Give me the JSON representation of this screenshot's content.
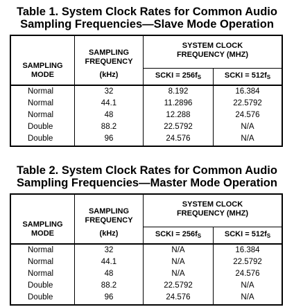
{
  "tables": [
    {
      "caption_line1": "Table 1. System Clock Rates for Common Audio",
      "caption_line2": "Sampling Frequencies—Slave Mode Operation",
      "headers": {
        "mode_line1": "SAMPLING",
        "mode_line2": "MODE",
        "freq_line1": "SAMPLING",
        "freq_line2": "FREQUENCY",
        "freq_line3": "(kHz)",
        "clock_line1": "SYSTEM CLOCK",
        "clock_line2": "FREQUENCY (MHZ)",
        "scki256_prefix": "SCKI = 256f",
        "scki256_sub": "S",
        "scki512_prefix": "SCKI = 512f",
        "scki512_sub": "S"
      },
      "rows": [
        {
          "mode": "Normal",
          "freq": "32",
          "scki256": "8.192",
          "scki512": "16.384"
        },
        {
          "mode": "Normal",
          "freq": "44.1",
          "scki256": "11.2896",
          "scki512": "22.5792"
        },
        {
          "mode": "Normal",
          "freq": "48",
          "scki256": "12.288",
          "scki512": "24.576"
        },
        {
          "mode": "Double",
          "freq": "88.2",
          "scki256": "22.5792",
          "scki512": "N/A"
        },
        {
          "mode": "Double",
          "freq": "96",
          "scki256": "24.576",
          "scki512": "N/A"
        }
      ]
    },
    {
      "caption_line1": "Table 2. System Clock Rates for Common Audio",
      "caption_line2": "Sampling Frequencies—Master Mode Operation",
      "headers": {
        "mode_line1": "SAMPLING",
        "mode_line2": "MODE",
        "freq_line1": "SAMPLING",
        "freq_line2": "FREQUENCY",
        "freq_line3": "(kHz)",
        "clock_line1": "SYSTEM CLOCK",
        "clock_line2": "FREQUENCY (MHZ)",
        "scki256_prefix": "SCKI = 256f",
        "scki256_sub": "S",
        "scki512_prefix": "SCKI = 512f",
        "scki512_sub": "S"
      },
      "rows": [
        {
          "mode": "Normal",
          "freq": "32",
          "scki256": "N/A",
          "scki512": "16.384"
        },
        {
          "mode": "Normal",
          "freq": "44.1",
          "scki256": "N/A",
          "scki512": "22.5792"
        },
        {
          "mode": "Normal",
          "freq": "48",
          "scki256": "N/A",
          "scki512": "24.576"
        },
        {
          "mode": "Double",
          "freq": "88.2",
          "scki256": "22.5792",
          "scki512": "N/A"
        },
        {
          "mode": "Double",
          "freq": "96",
          "scki256": "24.576",
          "scki512": "N/A"
        }
      ]
    }
  ]
}
